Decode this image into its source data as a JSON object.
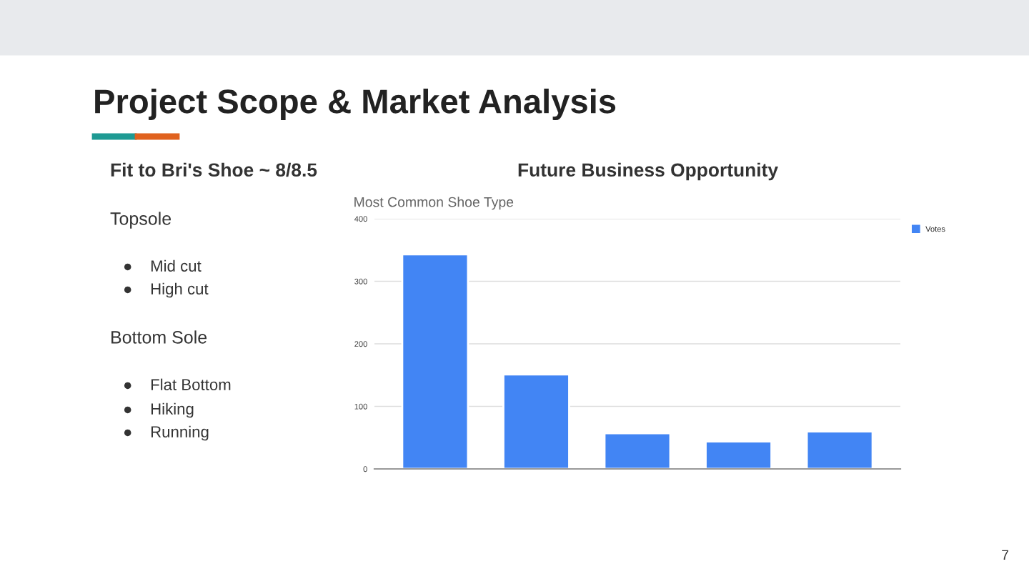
{
  "chart_data": {
    "type": "bar",
    "title": "Most Common Shoe Type",
    "categories": [
      null,
      null,
      null,
      null,
      null
    ],
    "series": [
      {
        "name": "Votes",
        "color": "#4285f4",
        "values": [
          343,
          151,
          57,
          44,
          60
        ]
      }
    ],
    "ylim": [
      0,
      400
    ],
    "yticks": [
      0,
      100,
      200,
      300,
      400
    ],
    "grid": "y",
    "legend": "top right",
    "annotations": [
      "Project Scope & Market Analysis",
      "Fit to Bri's Shoe ~ 8/8.5",
      "Future Business Opportunity",
      "Topsole",
      "●    Mid cut",
      "●    High cut",
      "Bottom Sole",
      "●    Flat Bottom",
      "●    Hiking",
      "●    Running",
      "7"
    ]
  }
}
